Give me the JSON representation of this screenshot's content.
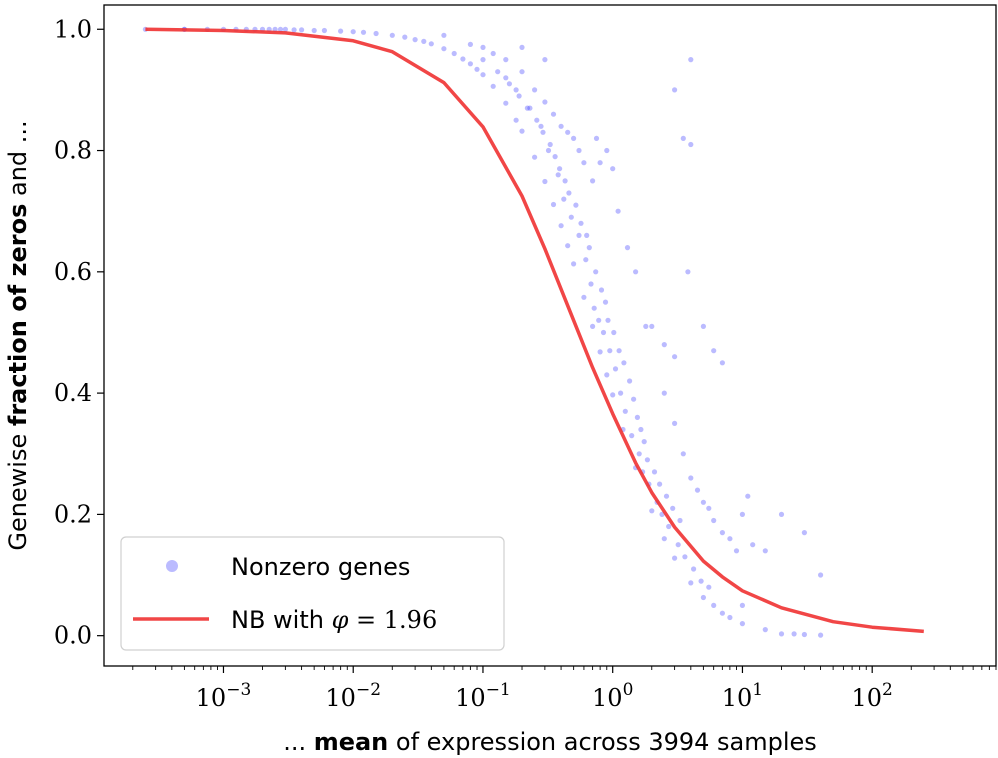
{
  "chart_data": {
    "type": "scatter",
    "title": "",
    "xlabel": {
      "prefix": "... ",
      "bold": "mean",
      "suffix": " of expression across 3994 samples"
    },
    "ylabel": {
      "prefix": "Genewise ",
      "bold": "fraction of zeros",
      "suffix": " and ..."
    },
    "xscale": "log",
    "xlim": [
      0.00012,
      900
    ],
    "ylim": [
      -0.05,
      1.04
    ],
    "xticks": [
      {
        "value": 0.001,
        "base": "10",
        "exp": "−3"
      },
      {
        "value": 0.01,
        "base": "10",
        "exp": "−2"
      },
      {
        "value": 0.1,
        "base": "10",
        "exp": "−1"
      },
      {
        "value": 1,
        "base": "10",
        "exp": "0"
      },
      {
        "value": 10,
        "base": "10",
        "exp": "1"
      },
      {
        "value": 100,
        "base": "10",
        "exp": "2"
      }
    ],
    "yticks": [
      {
        "value": 0.0,
        "label": "0.0"
      },
      {
        "value": 0.2,
        "label": "0.2"
      },
      {
        "value": 0.4,
        "label": "0.4"
      },
      {
        "value": 0.6,
        "label": "0.6"
      },
      {
        "value": 0.8,
        "label": "0.8"
      },
      {
        "value": 1.0,
        "label": "1.0"
      }
    ],
    "legend": {
      "placement": "lower-left",
      "entries": [
        {
          "label": "Nonzero genes",
          "marker": "dot"
        },
        {
          "label": "NB with ",
          "math_symbol": "φ",
          "math_rest": " = 1.96",
          "marker": "line"
        }
      ]
    },
    "series": [
      {
        "kind": "scatter",
        "color": "#3b3bff",
        "alpha": 0.35,
        "points": [
          [
            0.00025,
            1.0
          ],
          [
            0.0005,
            1.0
          ],
          [
            0.0005,
            1.0
          ],
          [
            0.00075,
            1.0
          ],
          [
            0.001,
            1.0
          ],
          [
            0.00125,
            1.0
          ],
          [
            0.0015,
            1.0
          ],
          [
            0.00175,
            1.0
          ],
          [
            0.002,
            1.0
          ],
          [
            0.00225,
            1.0
          ],
          [
            0.0025,
            1.0
          ],
          [
            0.00275,
            1.0
          ],
          [
            0.003,
            1.0
          ],
          [
            0.0035,
            0.999
          ],
          [
            0.004,
            0.999
          ],
          [
            0.005,
            0.998
          ],
          [
            0.006,
            0.998
          ],
          [
            0.008,
            0.997
          ],
          [
            0.01,
            0.996
          ],
          [
            0.012,
            0.995
          ],
          [
            0.015,
            0.993
          ],
          [
            0.02,
            0.99
          ],
          [
            0.025,
            0.987
          ],
          [
            0.03,
            0.983
          ],
          [
            0.035,
            0.98
          ],
          [
            0.04,
            0.976
          ],
          [
            0.05,
            0.968
          ],
          [
            0.06,
            0.96
          ],
          [
            0.07,
            0.951
          ],
          [
            0.08,
            0.943
          ],
          [
            0.09,
            0.934
          ],
          [
            0.1,
            0.925
          ],
          [
            0.12,
            0.906
          ],
          [
            0.15,
            0.878
          ],
          [
            0.18,
            0.85
          ],
          [
            0.2,
            0.832
          ],
          [
            0.25,
            0.789
          ],
          [
            0.3,
            0.749
          ],
          [
            0.35,
            0.711
          ],
          [
            0.4,
            0.676
          ],
          [
            0.45,
            0.643
          ],
          [
            0.5,
            0.613
          ],
          [
            0.6,
            0.558
          ],
          [
            0.7,
            0.51
          ],
          [
            0.8,
            0.468
          ],
          [
            0.9,
            0.43
          ],
          [
            1.0,
            0.397
          ],
          [
            1.2,
            0.34
          ],
          [
            1.5,
            0.277
          ],
          [
            2.0,
            0.206
          ],
          [
            2.5,
            0.16
          ],
          [
            3.0,
            0.128
          ],
          [
            4.0,
            0.087
          ],
          [
            5.0,
            0.063
          ],
          [
            7.0,
            0.037
          ],
          [
            10.0,
            0.02
          ],
          [
            0.05,
            0.99
          ],
          [
            0.08,
            0.975
          ],
          [
            0.1,
            0.97
          ],
          [
            0.12,
            0.96
          ],
          [
            0.15,
            0.95
          ],
          [
            0.2,
            0.97
          ],
          [
            0.3,
            0.95
          ],
          [
            0.2,
            0.93
          ],
          [
            0.25,
            0.9
          ],
          [
            0.3,
            0.88
          ],
          [
            0.35,
            0.86
          ],
          [
            0.4,
            0.84
          ],
          [
            0.45,
            0.83
          ],
          [
            0.5,
            0.82
          ],
          [
            0.55,
            0.8
          ],
          [
            0.6,
            0.78
          ],
          [
            0.7,
            0.75
          ],
          [
            0.8,
            0.78
          ],
          [
            0.75,
            0.82
          ],
          [
            0.9,
            0.8
          ],
          [
            1.0,
            0.77
          ],
          [
            1.1,
            0.7
          ],
          [
            1.3,
            0.64
          ],
          [
            1.5,
            0.6
          ],
          [
            1.8,
            0.51
          ],
          [
            2.0,
            0.51
          ],
          [
            2.5,
            0.48
          ],
          [
            3.0,
            0.46
          ],
          [
            3.5,
            0.82
          ],
          [
            4.0,
            0.81
          ],
          [
            3.8,
            0.6
          ],
          [
            3.0,
            0.9
          ],
          [
            4.0,
            0.95
          ],
          [
            5.0,
            0.51
          ],
          [
            6.0,
            0.47
          ],
          [
            7.0,
            0.45
          ],
          [
            2.5,
            0.4
          ],
          [
            3.0,
            0.35
          ],
          [
            3.5,
            0.3
          ],
          [
            4.0,
            0.26
          ],
          [
            4.5,
            0.24
          ],
          [
            5.0,
            0.22
          ],
          [
            5.5,
            0.21
          ],
          [
            6.0,
            0.19
          ],
          [
            7.0,
            0.17
          ],
          [
            8.0,
            0.16
          ],
          [
            9.0,
            0.14
          ],
          [
            10.0,
            0.2
          ],
          [
            11.0,
            0.23
          ],
          [
            12.0,
            0.15
          ],
          [
            15.0,
            0.14
          ],
          [
            20.0,
            0.2
          ],
          [
            30.0,
            0.17
          ],
          [
            40.0,
            0.1
          ],
          [
            15.0,
            0.01
          ],
          [
            20.0,
            0.003
          ],
          [
            25.0,
            0.003
          ],
          [
            30.0,
            0.002
          ],
          [
            40.0,
            0.001
          ],
          [
            8.0,
            0.03
          ],
          [
            10.0,
            0.05
          ],
          [
            6.0,
            0.05
          ],
          [
            0.15,
            0.92
          ],
          [
            0.18,
            0.9
          ],
          [
            0.22,
            0.87
          ],
          [
            0.28,
            0.84
          ],
          [
            0.32,
            0.8
          ],
          [
            0.38,
            0.76
          ],
          [
            0.42,
            0.72
          ],
          [
            0.48,
            0.69
          ],
          [
            0.55,
            0.66
          ],
          [
            0.62,
            0.62
          ],
          [
            0.68,
            0.58
          ],
          [
            0.72,
            0.54
          ],
          [
            0.78,
            0.52
          ],
          [
            0.85,
            0.5
          ],
          [
            0.95,
            0.47
          ],
          [
            1.05,
            0.44
          ],
          [
            1.15,
            0.4
          ],
          [
            1.25,
            0.37
          ],
          [
            1.4,
            0.33
          ],
          [
            1.6,
            0.3
          ],
          [
            1.7,
            0.27
          ],
          [
            1.9,
            0.25
          ],
          [
            2.2,
            0.22
          ],
          [
            2.4,
            0.2
          ],
          [
            2.7,
            0.18
          ],
          [
            3.2,
            0.15
          ],
          [
            3.6,
            0.13
          ],
          [
            4.2,
            0.11
          ],
          [
            4.8,
            0.09
          ],
          [
            5.5,
            0.08
          ],
          [
            0.1,
            0.95
          ],
          [
            0.13,
            0.93
          ],
          [
            0.16,
            0.91
          ],
          [
            0.19,
            0.89
          ],
          [
            0.23,
            0.87
          ],
          [
            0.26,
            0.85
          ],
          [
            0.29,
            0.83
          ],
          [
            0.33,
            0.81
          ],
          [
            0.36,
            0.79
          ],
          [
            0.39,
            0.77
          ],
          [
            0.43,
            0.75
          ],
          [
            0.46,
            0.73
          ],
          [
            0.52,
            0.71
          ],
          [
            0.57,
            0.68
          ],
          [
            0.63,
            0.66
          ],
          [
            0.66,
            0.64
          ],
          [
            0.74,
            0.6
          ],
          [
            0.82,
            0.57
          ],
          [
            0.88,
            0.55
          ],
          [
            0.92,
            0.52
          ],
          [
            1.02,
            0.5
          ],
          [
            1.12,
            0.47
          ],
          [
            1.22,
            0.45
          ],
          [
            1.35,
            0.42
          ],
          [
            1.45,
            0.39
          ],
          [
            1.55,
            0.36
          ],
          [
            1.65,
            0.34
          ],
          [
            1.75,
            0.32
          ],
          [
            1.85,
            0.29
          ],
          [
            2.1,
            0.27
          ],
          [
            2.3,
            0.25
          ],
          [
            2.6,
            0.23
          ],
          [
            2.9,
            0.21
          ],
          [
            3.3,
            0.19
          ]
        ]
      },
      {
        "kind": "line",
        "name": "NB with φ = 1.96",
        "color": "#f03232",
        "phi": 1.96,
        "x": [
          0.00025,
          0.001,
          0.003,
          0.01,
          0.02,
          0.05,
          0.1,
          0.2,
          0.3,
          0.5,
          0.7,
          1.0,
          1.5,
          2.0,
          3.0,
          5.0,
          7.0,
          10.0,
          20.0,
          50.0,
          100.0,
          250.0
        ],
        "y": [
          1.0,
          0.998,
          0.994,
          0.981,
          0.963,
          0.912,
          0.839,
          0.725,
          0.638,
          0.52,
          0.442,
          0.366,
          0.285,
          0.236,
          0.179,
          0.123,
          0.097,
          0.074,
          0.046,
          0.023,
          0.014,
          0.007
        ]
      }
    ]
  }
}
